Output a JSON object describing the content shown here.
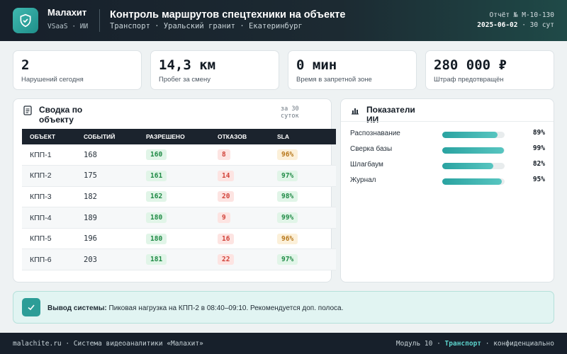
{
  "header": {
    "brand_name": "Малахит",
    "brand_sub": "VSaaS · ИИ",
    "title": "Контроль маршрутов спецтехники на объекте",
    "subtitle": "Транспорт · Уральский гранит · Екатеринбург",
    "report_no": "Отчёт № M-10-130",
    "report_date": "2025-06-02",
    "report_period": "· 30 сут"
  },
  "kpis": [
    {
      "value": "2",
      "label": "Нарушений сегодня"
    },
    {
      "value": "14,3 км",
      "label": "Пробег за смену"
    },
    {
      "value": "0 мин",
      "label": "Время в запретной зоне"
    },
    {
      "value": "280 000 ₽",
      "label": "Штраф предотвращён"
    }
  ],
  "summary": {
    "title": "Сводка по объекту",
    "period": "за 30 суток",
    "columns": [
      "ОБЪЕКТ",
      "СОБЫТИЙ",
      "РАЗРЕШЕНО",
      "ОТКАЗОВ",
      "SLA"
    ],
    "rows": [
      {
        "object": "КПП-1",
        "events": "168",
        "allowed": "160",
        "denied": "8",
        "sla": "96%",
        "sla_status": "amber"
      },
      {
        "object": "КПП-2",
        "events": "175",
        "allowed": "161",
        "denied": "14",
        "sla": "97%",
        "sla_status": "green"
      },
      {
        "object": "КПП-3",
        "events": "182",
        "allowed": "162",
        "denied": "20",
        "sla": "98%",
        "sla_status": "green"
      },
      {
        "object": "КПП-4",
        "events": "189",
        "allowed": "180",
        "denied": "9",
        "sla": "99%",
        "sla_status": "green"
      },
      {
        "object": "КПП-5",
        "events": "196",
        "allowed": "180",
        "denied": "16",
        "sla": "96%",
        "sla_status": "amber"
      },
      {
        "object": "КПП-6",
        "events": "203",
        "allowed": "181",
        "denied": "22",
        "sla": "97%",
        "sla_status": "green"
      }
    ]
  },
  "ai": {
    "title": "Показатели ИИ",
    "metrics": [
      {
        "label": "Распознавание",
        "value": "89%",
        "fraction": 0.89
      },
      {
        "label": "Сверка базы",
        "value": "99%",
        "fraction": 0.99
      },
      {
        "label": "Шлагбаум",
        "value": "82%",
        "fraction": 0.82
      },
      {
        "label": "Журнал",
        "value": "95%",
        "fraction": 0.95
      }
    ]
  },
  "alert": {
    "label": "Вывод системы:",
    "text": "Пиковая нагрузка на КПП-2 в 08:40–09:10. Рекомендуется доп. полоса."
  },
  "footer": {
    "left": "malachite.ru · Система видеоаналитики «Малахит»",
    "module": "Модуль 10 ·",
    "module_name": "Транспорт",
    "confidential": "· конфиденциально"
  },
  "colors": {
    "accent": "#2c9d97",
    "header_bg": "#17202b",
    "ok": "#1f8a45",
    "warn": "#b7771b",
    "bad": "#d1433a"
  },
  "icons": {
    "logo": "shield-check-icon",
    "summary": "document-icon",
    "ai": "bar-chart-icon",
    "alert": "check-icon"
  }
}
